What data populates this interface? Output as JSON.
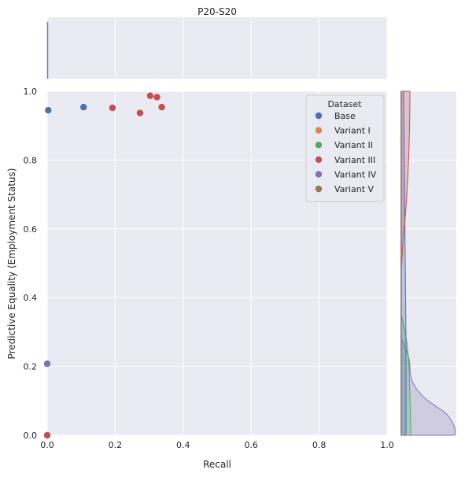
{
  "figure": {
    "title": "P20-S20"
  },
  "chart_data": {
    "type": "scatter",
    "title": "P20-S20",
    "xlabel": "Recall",
    "ylabel": "Predictive Equality (Employment Status)",
    "xlim": [
      0,
      1
    ],
    "ylim": [
      0,
      1
    ],
    "xticks": [
      "0.0",
      "0.2",
      "0.4",
      "0.6",
      "0.8",
      "1.0"
    ],
    "yticks": [
      "0.0",
      "0.2",
      "0.4",
      "0.6",
      "0.8",
      "1.0"
    ],
    "grid": true,
    "legend": {
      "title": "Dataset",
      "placement": "top-right"
    },
    "marginals": {
      "top": "kde of Recall",
      "right": "kde of Predictive Equality"
    },
    "series": [
      {
        "name": "Base",
        "color": "#4c72b0",
        "points": [
          [
            0.003,
            0.945
          ],
          [
            0.107,
            0.954
          ]
        ]
      },
      {
        "name": "Variant I",
        "color": "#dd8452",
        "points": []
      },
      {
        "name": "Variant II",
        "color": "#55a868",
        "points": []
      },
      {
        "name": "Variant III",
        "color": "#c44e52",
        "points": [
          [
            0.192,
            0.952
          ],
          [
            0.273,
            0.937
          ],
          [
            0.303,
            0.987
          ],
          [
            0.323,
            0.983
          ],
          [
            0.337,
            0.954
          ],
          [
            0.0,
            0.0
          ]
        ]
      },
      {
        "name": "Variant IV",
        "color": "#8172b3",
        "points": [
          [
            0.0,
            0.208
          ]
        ]
      },
      {
        "name": "Variant V",
        "color": "#937860",
        "points": []
      }
    ]
  }
}
